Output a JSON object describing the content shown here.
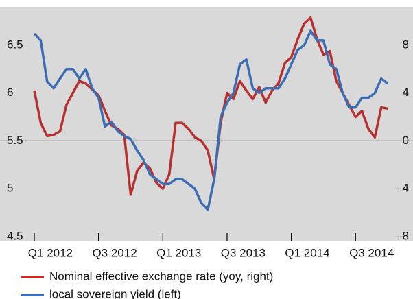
{
  "chart_data": {
    "type": "line",
    "x": [
      2012.0,
      2012.05,
      2012.1,
      2012.15,
      2012.2,
      2012.25,
      2012.3,
      2012.35,
      2012.4,
      2012.45,
      2012.5,
      2012.55,
      2012.6,
      2012.65,
      2012.7,
      2012.75,
      2012.8,
      2012.85,
      2012.9,
      2012.95,
      2013.0,
      2013.05,
      2013.1,
      2013.15,
      2013.2,
      2013.25,
      2013.3,
      2013.35,
      2013.4,
      2013.45,
      2013.5,
      2013.55,
      2013.6,
      2013.65,
      2013.7,
      2013.75,
      2013.8,
      2013.85,
      2013.9,
      2013.95,
      2014.0,
      2014.05,
      2014.1,
      2014.15,
      2014.2,
      2014.25,
      2014.3,
      2014.35,
      2014.4,
      2014.45,
      2014.5,
      2014.55,
      2014.6,
      2014.65,
      2014.7,
      2014.75
    ],
    "series": [
      {
        "name": "Nominal effective exchange rate (yoy, right)",
        "color": "#b5302f",
        "axis": "y2",
        "values": [
          4.2,
          1.5,
          0.4,
          0.5,
          0.8,
          3.0,
          4.0,
          5.0,
          4.8,
          4.3,
          3.8,
          2.5,
          1.3,
          1.0,
          0.5,
          -4.5,
          -2.5,
          -1.8,
          -2.3,
          -3.5,
          -4.0,
          -2.8,
          1.5,
          1.5,
          1.0,
          0.3,
          0,
          -0.8,
          -3.2,
          1.5,
          4.0,
          3.5,
          5.0,
          4.2,
          3.5,
          4.5,
          3.2,
          4.2,
          4.8,
          6.5,
          7.0,
          8.5,
          9.8,
          10.3,
          8.5,
          7.2,
          7.5,
          5.0,
          4.0,
          3.0,
          2.0,
          2.5,
          1.0,
          0.3,
          2.8,
          2.7
        ]
      },
      {
        "name": "local sovereign yield (left)",
        "color": "#3a6db4",
        "axis": "y",
        "values": [
          6.62,
          6.55,
          6.12,
          6.05,
          6.15,
          6.25,
          6.25,
          6.15,
          6.25,
          6.05,
          5.95,
          5.65,
          5.7,
          5.6,
          5.55,
          5.52,
          5.4,
          5.3,
          5.15,
          5.1,
          5.05,
          5.05,
          5.1,
          5.1,
          5.05,
          5.0,
          4.85,
          4.78,
          5.1,
          5.75,
          5.9,
          6.0,
          6.3,
          6.35,
          6.05,
          6.0,
          6.05,
          6.05,
          6.05,
          6.15,
          6.3,
          6.45,
          6.5,
          6.65,
          6.55,
          6.55,
          6.3,
          6.25,
          6.0,
          5.85,
          5.85,
          5.95,
          5.95,
          6.0,
          6.15,
          6.1
        ]
      }
    ],
    "xlim": [
      2011.733,
      2014.947
    ],
    "xticks": [
      {
        "value": 2012.0,
        "label": "Q1 2012"
      },
      {
        "value": 2012.5,
        "label": "Q3 2012"
      },
      {
        "value": 2013.0,
        "label": "Q1 2013"
      },
      {
        "value": 2013.5,
        "label": "Q3 2013"
      },
      {
        "value": 2014.0,
        "label": "Q1 2014"
      },
      {
        "value": 2014.5,
        "label": "Q3 2014"
      }
    ],
    "ylim": [
      4.45,
      6.9
    ],
    "yticks": [
      4.5,
      5.0,
      5.5,
      6.0,
      6.5
    ],
    "y2lim": [
      -8.4,
      11.2
    ],
    "y2ticks": [
      {
        "value": -8,
        "label": "–8"
      },
      {
        "value": -4,
        "label": "–4"
      },
      0,
      4,
      8
    ],
    "zero_line": true
  }
}
